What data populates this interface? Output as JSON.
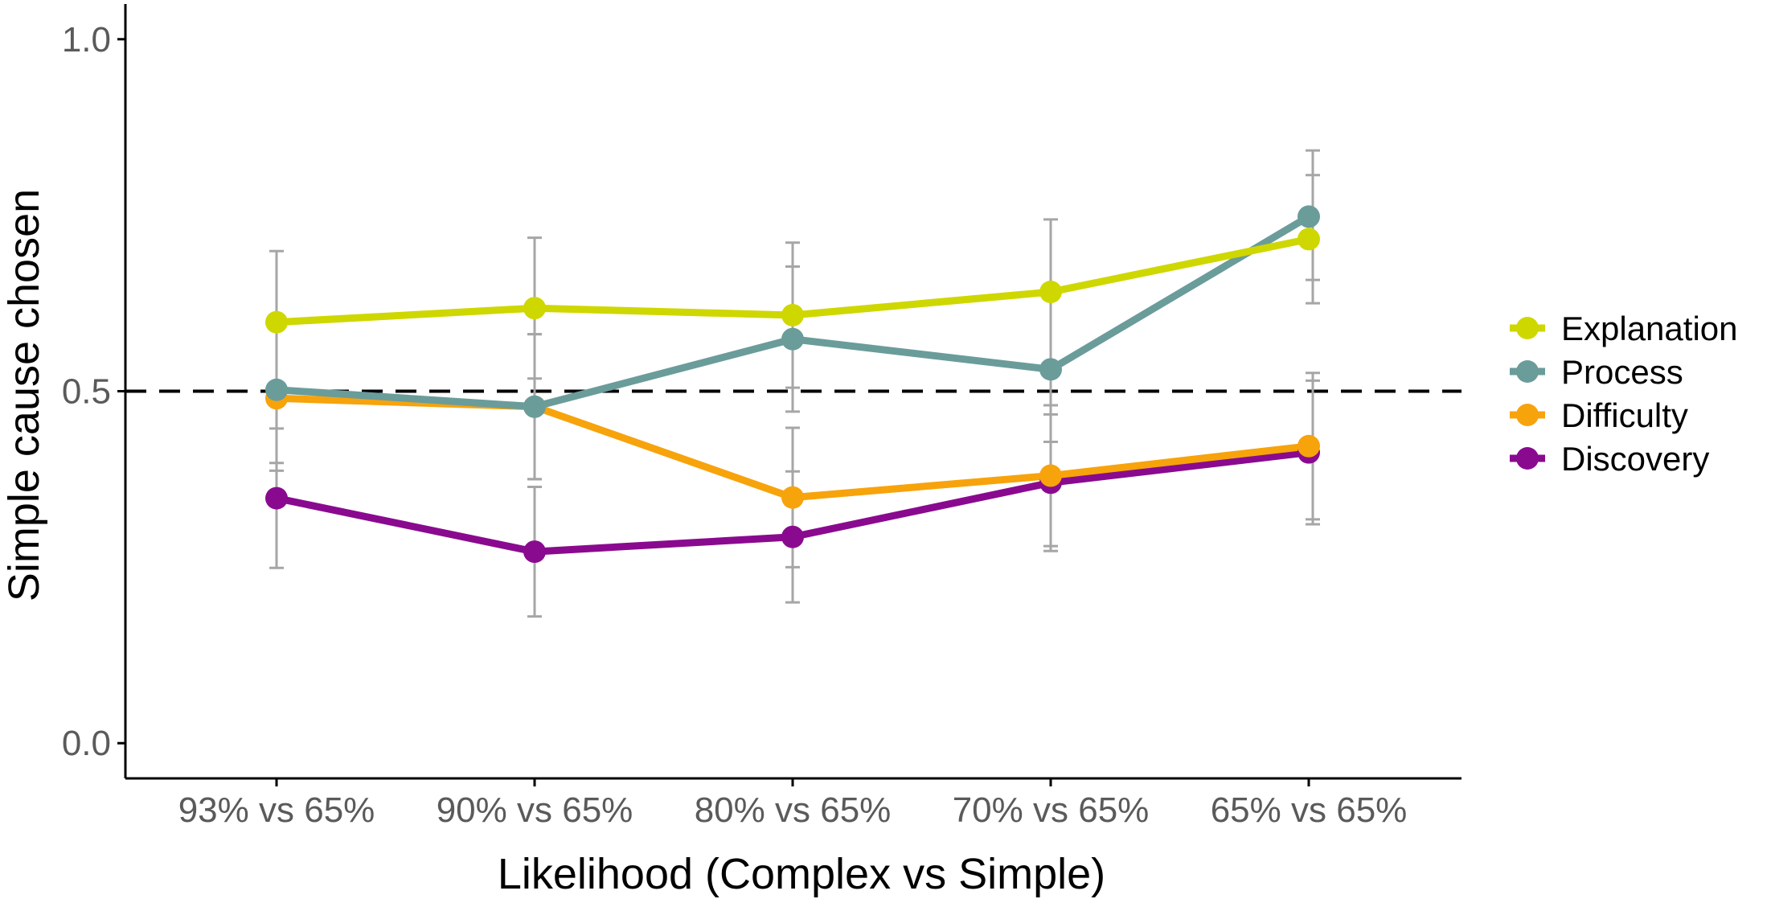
{
  "chart_data": {
    "type": "line",
    "title": "",
    "xlabel": "Likelihood (Complex vs Simple)",
    "ylabel": "Simple cause chosen",
    "categories": [
      "93% vs 65%",
      "90% vs 65%",
      "80% vs 65%",
      "70% vs 65%",
      "65% vs 65%"
    ],
    "ylim": [
      -0.05,
      1.05
    ],
    "yticks": [
      {
        "value": 0.0,
        "label": "0.0"
      },
      {
        "value": 0.5,
        "label": "0.5"
      },
      {
        "value": 1.0,
        "label": "1.0"
      }
    ],
    "reference_line": {
      "y": 0.5,
      "style": "dashed",
      "color": "#000000"
    },
    "grid": false,
    "legend_position": "right",
    "error_bar_color": "#a6a6a6",
    "series": [
      {
        "name": "Explanation",
        "color": "#cfd700",
        "values": [
          0.598,
          0.618,
          0.608,
          0.641,
          0.716
        ],
        "err_low": [
          0.497,
          0.518,
          0.505,
          0.538,
          0.625
        ],
        "err_high": [
          0.699,
          0.718,
          0.711,
          0.744,
          0.807
        ]
      },
      {
        "name": "Process",
        "color": "#6a9c9a",
        "values": [
          0.502,
          0.478,
          0.574,
          0.531,
          0.748
        ],
        "err_low": [
          0.398,
          0.375,
          0.471,
          0.428,
          0.658
        ],
        "err_high": [
          0.606,
          0.581,
          0.677,
          0.634,
          0.842
        ]
      },
      {
        "name": "Difficulty",
        "color": "#f7a30c",
        "values": [
          0.49,
          0.478,
          0.349,
          0.38,
          0.422
        ],
        "err_low": [
          0.387,
          0.375,
          0.25,
          0.28,
          0.318
        ],
        "err_high": [
          0.593,
          0.581,
          0.448,
          0.48,
          0.526
        ]
      },
      {
        "name": "Discovery",
        "color": "#8a0a8f",
        "values": [
          0.348,
          0.272,
          0.293,
          0.37,
          0.413
        ],
        "err_low": [
          0.249,
          0.18,
          0.2,
          0.273,
          0.311
        ],
        "err_high": [
          0.447,
          0.364,
          0.386,
          0.467,
          0.515
        ]
      }
    ]
  }
}
